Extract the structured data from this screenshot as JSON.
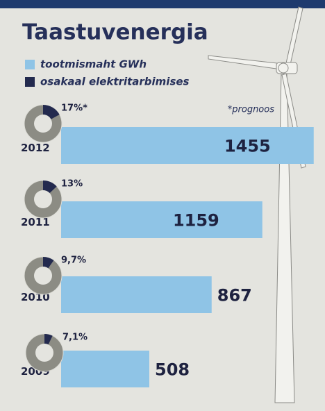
{
  "chart_data": [
    {
      "type": "bar",
      "title": "Taastuvenergia",
      "note": "*prognoos",
      "categories": [
        "2012",
        "2011",
        "2010",
        "2009"
      ],
      "series": [
        {
          "name": "tootmismaht GWh",
          "color": "#8fc4e6",
          "values": [
            1455,
            1159,
            867,
            508
          ]
        }
      ]
    },
    {
      "type": "donut",
      "series": [
        {
          "name": "osakaal elektritarbimises",
          "color": "#232a4e",
          "values": [
            17,
            13,
            9.7,
            7.1
          ],
          "value_labels": [
            "17%*",
            "13%",
            "9,7%",
            "7,1%"
          ]
        }
      ]
    }
  ]
}
